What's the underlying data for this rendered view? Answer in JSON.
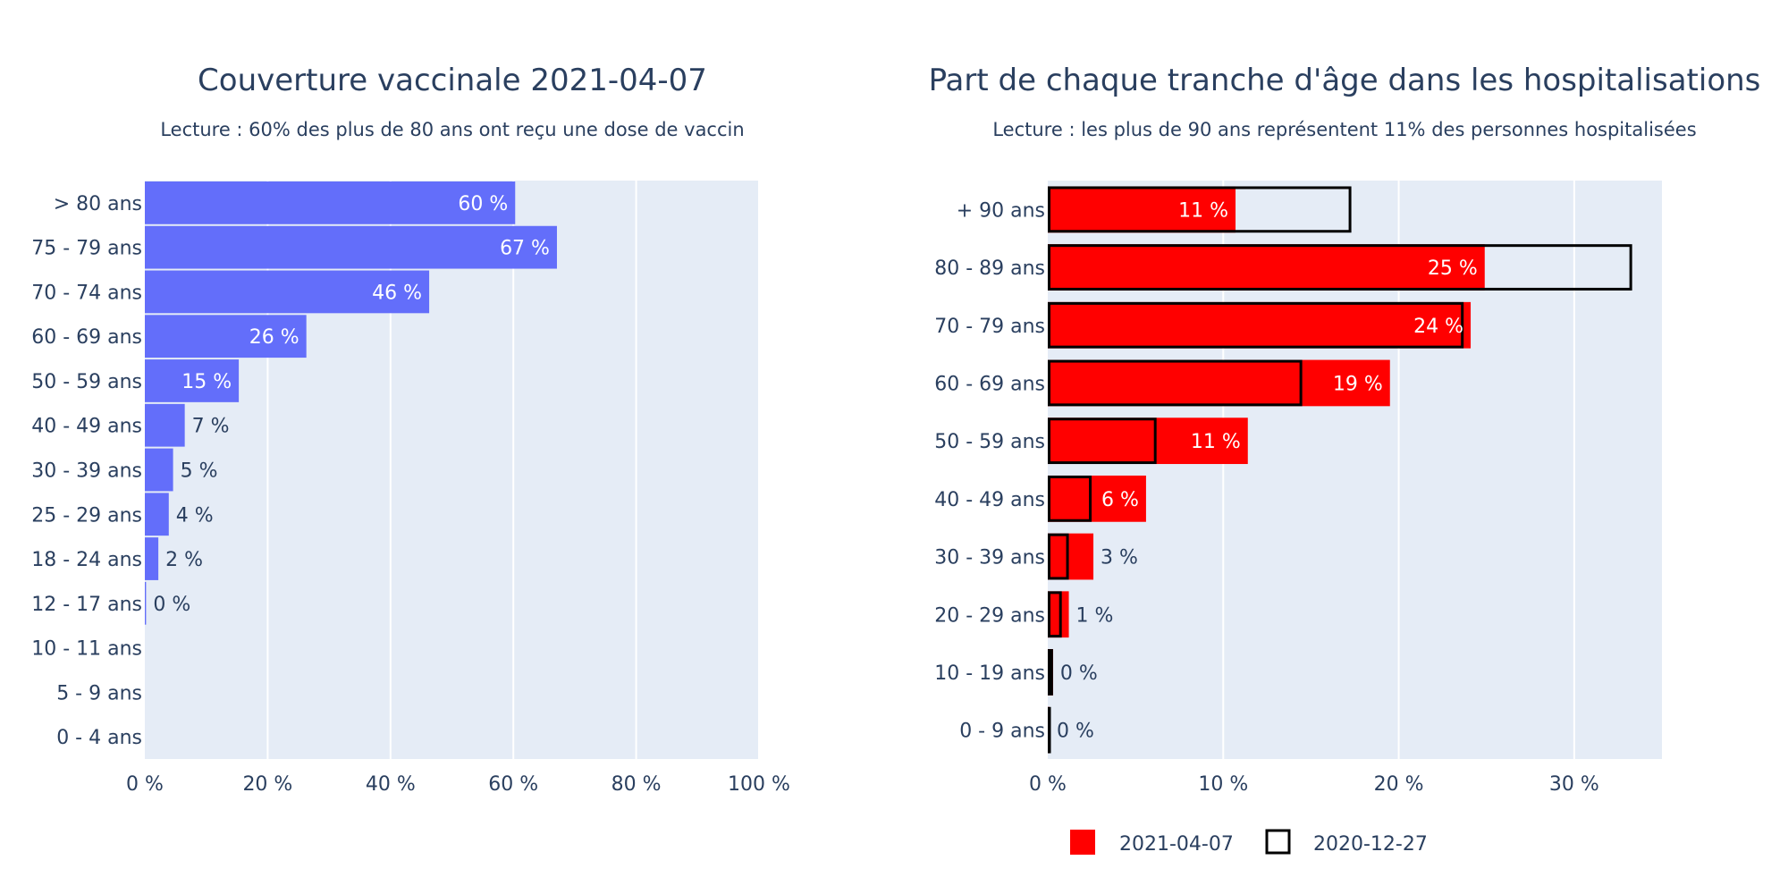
{
  "chart_data": [
    {
      "type": "bar",
      "orientation": "horizontal",
      "title": "Couverture vaccinale 2021-04-07",
      "subtitle": "Lecture : 60% des plus de 80 ans ont reçu une dose de vaccin",
      "categories": [
        "> 80 ans",
        "75 - 79 ans",
        "70 - 74 ans",
        "60 - 69 ans",
        "50 - 59 ans",
        "40 - 49 ans",
        "30 - 39 ans",
        "25 - 29 ans",
        "18 - 24 ans",
        "12 - 17 ans",
        "10 - 11 ans",
        "5 - 9 ans",
        "0 - 4 ans"
      ],
      "values": [
        60.3,
        67.1,
        46.3,
        26.3,
        15.3,
        6.5,
        4.6,
        3.9,
        2.2,
        0.2,
        null,
        null,
        null
      ],
      "data_labels": [
        "60 %",
        "67 %",
        "46 %",
        "26 %",
        "15 %",
        "7 %",
        "5 %",
        "4 %",
        "2 %",
        "0 %",
        "",
        "",
        ""
      ],
      "xlim": [
        0,
        100
      ],
      "xticks": [
        0,
        20,
        40,
        60,
        80,
        100
      ],
      "xtick_labels": [
        "0 %",
        "20 %",
        "40 %",
        "60 %",
        "80 %",
        "100 %"
      ],
      "color": "#636efa",
      "grid": true
    },
    {
      "type": "bar",
      "orientation": "horizontal",
      "title": "Part de chaque tranche d'âge dans les hospitalisations",
      "subtitle": "Lecture : les plus de 90 ans représentent 11% des personnes hospitalisées",
      "categories": [
        "+ 90 ans",
        "80 - 89 ans",
        "70 - 79 ans",
        "60 - 69 ans",
        "50 - 59 ans",
        "40 - 49 ans",
        "30 - 39 ans",
        "20 - 29 ans",
        "10 - 19 ans",
        "0 - 9 ans"
      ],
      "series": [
        {
          "name": "2021-04-07",
          "values": [
            10.7,
            24.9,
            24.1,
            19.5,
            11.4,
            5.6,
            2.6,
            1.2,
            0.3,
            0.1
          ],
          "data_labels": [
            "11 %",
            "25 %",
            "24 %",
            "19 %",
            "11 %",
            "6 %",
            "3 %",
            "1 %",
            "0 %",
            "0 %"
          ],
          "color": "#ff0000"
        },
        {
          "name": "2020-12-27",
          "values": [
            17.3,
            33.3,
            23.7,
            14.5,
            6.2,
            2.5,
            1.2,
            0.8,
            0.3,
            0.1
          ],
          "style": "outline",
          "color": "#000000"
        }
      ],
      "xlim": [
        0,
        35
      ],
      "xticks": [
        0,
        10,
        20,
        30
      ],
      "xtick_labels": [
        "0 %",
        "10 %",
        "20 %",
        "30 %"
      ],
      "legend": "bottom",
      "grid": true
    }
  ]
}
